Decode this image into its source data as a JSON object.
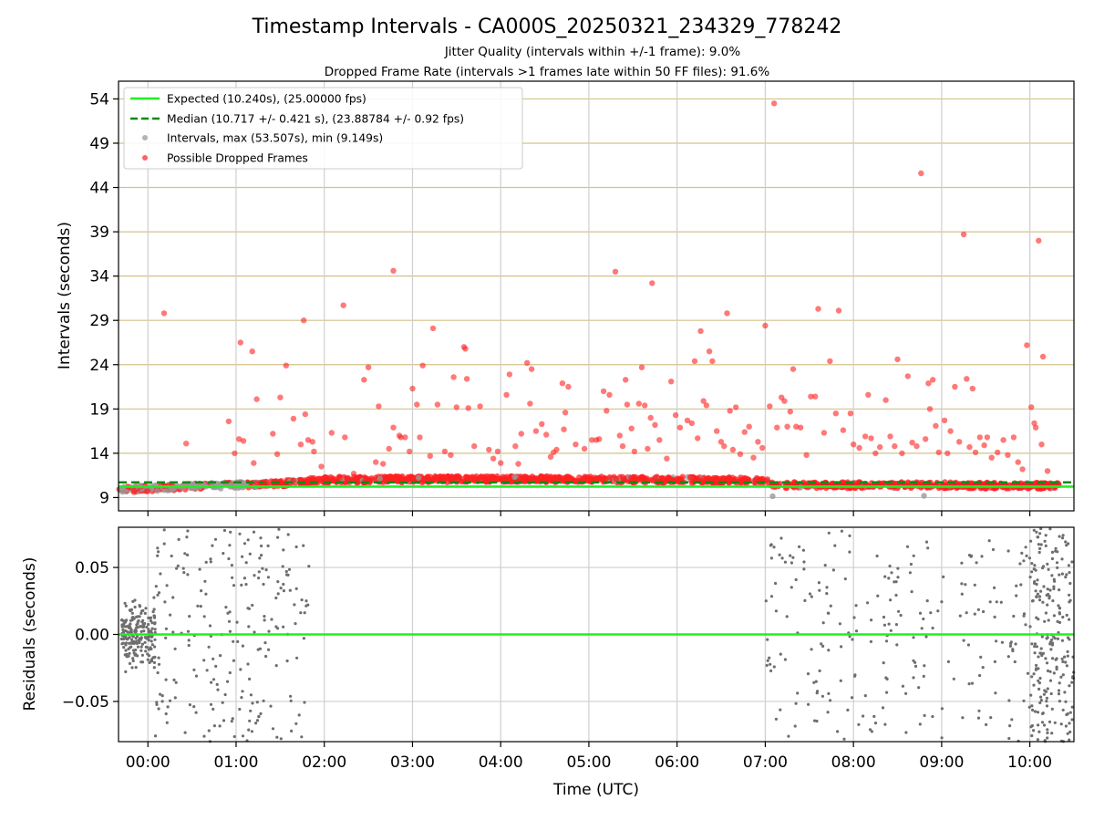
{
  "figure": {
    "title": "Timestamp Intervals - CA000S_20250321_234329_778242",
    "subtitle_1": "Jitter Quality (intervals within +/-1 frame): 9.0%",
    "subtitle_2": "Dropped Frame Rate (intervals >1 frames late within 50 FF files): 91.6%"
  },
  "colors": {
    "expected": "#22ee22",
    "median": "#118811",
    "intervals": "#9a9a9a",
    "dropped": "#ff2020",
    "residuals": "#6e6e6e",
    "hgrid_top": "#d4c28a",
    "grid": "#cfcfcf"
  },
  "chart_data": [
    {
      "type": "scatter",
      "ylabel": "Intervals (seconds)",
      "xlim": [
        "-00:20",
        "10:30"
      ],
      "ylim": [
        7.5,
        56
      ],
      "y_ticks": [
        9,
        14,
        19,
        24,
        29,
        34,
        39,
        44,
        49,
        54
      ],
      "grid": true,
      "legend_position": "top-left",
      "legend": [
        {
          "label": "Expected (10.240s), (25.00000 fps)",
          "kind": "line"
        },
        {
          "label": "Median (10.717 +/- 0.421 s), (23.88784 +/- 0.92 fps)",
          "kind": "dashed-line"
        },
        {
          "label": "Intervals, max (53.507s), min (9.149s)",
          "kind": "marker-gray"
        },
        {
          "label": "Possible Dropped Frames",
          "kind": "marker-red"
        }
      ],
      "expected_interval": 10.24,
      "median_interval": 10.717,
      "intervals_max": 53.507,
      "intervals_min": 9.149,
      "dense_band": [
        {
          "x": "-00:20",
          "y": 9.9
        },
        {
          "x": "00:10",
          "y": 10.1
        },
        {
          "x": "00:40",
          "y": 10.3
        },
        {
          "x": "01:30",
          "y": 10.6
        },
        {
          "x": "02:00",
          "y": 11.0
        },
        {
          "x": "04:00",
          "y": 11.1
        },
        {
          "x": "06:00",
          "y": 11.0
        },
        {
          "x": "07:00",
          "y": 10.9
        },
        {
          "x": "07:05",
          "y": 10.4
        },
        {
          "x": "09:00",
          "y": 10.4
        },
        {
          "x": "10:20",
          "y": 10.3
        }
      ],
      "gray_outliers": [
        {
          "x": "07:05",
          "y": 9.15
        },
        {
          "x": "08:48",
          "y": 9.2
        }
      ],
      "dropped_outliers": [
        {
          "x": "00:11",
          "y": 29.8
        },
        {
          "x": "00:26",
          "y": 15.1
        },
        {
          "x": "00:55",
          "y": 17.6
        },
        {
          "x": "00:59",
          "y": 14.0
        },
        {
          "x": "01:02",
          "y": 15.6
        },
        {
          "x": "01:03",
          "y": 26.5
        },
        {
          "x": "01:05",
          "y": 15.4
        },
        {
          "x": "01:11",
          "y": 25.5
        },
        {
          "x": "01:12",
          "y": 12.9
        },
        {
          "x": "01:14",
          "y": 20.1
        },
        {
          "x": "01:20",
          "y": 10.8
        },
        {
          "x": "01:25",
          "y": 16.2
        },
        {
          "x": "01:28",
          "y": 13.9
        },
        {
          "x": "01:30",
          "y": 20.3
        },
        {
          "x": "01:34",
          "y": 23.9
        },
        {
          "x": "01:39",
          "y": 17.9
        },
        {
          "x": "01:44",
          "y": 15.0
        },
        {
          "x": "01:46",
          "y": 29.0
        },
        {
          "x": "01:47",
          "y": 18.4
        },
        {
          "x": "01:49",
          "y": 15.5
        },
        {
          "x": "01:52",
          "y": 15.3
        },
        {
          "x": "01:53",
          "y": 14.2
        },
        {
          "x": "01:58",
          "y": 12.5
        },
        {
          "x": "02:05",
          "y": 16.3
        },
        {
          "x": "02:13",
          "y": 30.7
        },
        {
          "x": "02:14",
          "y": 15.8
        },
        {
          "x": "02:20",
          "y": 11.7
        },
        {
          "x": "02:27",
          "y": 22.3
        },
        {
          "x": "02:30",
          "y": 23.7
        },
        {
          "x": "02:35",
          "y": 13.0
        },
        {
          "x": "02:37",
          "y": 19.3
        },
        {
          "x": "02:40",
          "y": 12.8
        },
        {
          "x": "02:44",
          "y": 14.5
        },
        {
          "x": "02:47",
          "y": 34.6
        },
        {
          "x": "02:47",
          "y": 16.9
        },
        {
          "x": "02:51",
          "y": 16.0
        },
        {
          "x": "02:52",
          "y": 15.8
        },
        {
          "x": "02:55",
          "y": 15.8
        },
        {
          "x": "02:58",
          "y": 14.2
        },
        {
          "x": "03:00",
          "y": 21.3
        },
        {
          "x": "03:03",
          "y": 19.5
        },
        {
          "x": "03:05",
          "y": 15.8
        },
        {
          "x": "03:07",
          "y": 23.9
        },
        {
          "x": "03:12",
          "y": 13.7
        },
        {
          "x": "03:14",
          "y": 28.1
        },
        {
          "x": "03:17",
          "y": 19.5
        },
        {
          "x": "03:22",
          "y": 14.2
        },
        {
          "x": "03:26",
          "y": 13.8
        },
        {
          "x": "03:28",
          "y": 22.6
        },
        {
          "x": "03:30",
          "y": 19.2
        },
        {
          "x": "03:35",
          "y": 26.0
        },
        {
          "x": "03:36",
          "y": 25.8
        },
        {
          "x": "03:37",
          "y": 22.4
        },
        {
          "x": "03:38",
          "y": 19.1
        },
        {
          "x": "03:42",
          "y": 14.8
        },
        {
          "x": "03:46",
          "y": 19.3
        },
        {
          "x": "03:52",
          "y": 14.4
        },
        {
          "x": "03:55",
          "y": 13.4
        },
        {
          "x": "03:58",
          "y": 14.2
        },
        {
          "x": "04:00",
          "y": 12.9
        },
        {
          "x": "04:04",
          "y": 20.6
        },
        {
          "x": "04:06",
          "y": 22.9
        },
        {
          "x": "04:10",
          "y": 14.8
        },
        {
          "x": "04:12",
          "y": 12.8
        },
        {
          "x": "04:14",
          "y": 16.2
        },
        {
          "x": "04:18",
          "y": 24.2
        },
        {
          "x": "04:20",
          "y": 19.6
        },
        {
          "x": "04:21",
          "y": 23.5
        },
        {
          "x": "04:24",
          "y": 16.5
        },
        {
          "x": "04:28",
          "y": 17.3
        },
        {
          "x": "04:31",
          "y": 16.1
        },
        {
          "x": "04:34",
          "y": 13.6
        },
        {
          "x": "04:36",
          "y": 14.1
        },
        {
          "x": "04:38",
          "y": 14.4
        },
        {
          "x": "04:42",
          "y": 21.9
        },
        {
          "x": "04:43",
          "y": 16.7
        },
        {
          "x": "04:44",
          "y": 18.6
        },
        {
          "x": "04:46",
          "y": 21.5
        },
        {
          "x": "04:51",
          "y": 15.0
        },
        {
          "x": "04:57",
          "y": 14.5
        },
        {
          "x": "05:02",
          "y": 15.5
        },
        {
          "x": "05:05",
          "y": 15.5
        },
        {
          "x": "05:07",
          "y": 15.6
        },
        {
          "x": "05:10",
          "y": 21.0
        },
        {
          "x": "05:12",
          "y": 18.8
        },
        {
          "x": "05:14",
          "y": 20.6
        },
        {
          "x": "05:18",
          "y": 34.5
        },
        {
          "x": "05:21",
          "y": 16.0
        },
        {
          "x": "05:23",
          "y": 14.8
        },
        {
          "x": "05:25",
          "y": 22.3
        },
        {
          "x": "05:26",
          "y": 19.5
        },
        {
          "x": "05:29",
          "y": 16.8
        },
        {
          "x": "05:31",
          "y": 14.2
        },
        {
          "x": "05:34",
          "y": 19.6
        },
        {
          "x": "05:36",
          "y": 23.7
        },
        {
          "x": "05:38",
          "y": 19.4
        },
        {
          "x": "05:40",
          "y": 14.5
        },
        {
          "x": "05:42",
          "y": 18.0
        },
        {
          "x": "05:43",
          "y": 33.2
        },
        {
          "x": "05:45",
          "y": 17.2
        },
        {
          "x": "05:48",
          "y": 15.5
        },
        {
          "x": "05:53",
          "y": 13.4
        },
        {
          "x": "05:56",
          "y": 22.1
        },
        {
          "x": "05:59",
          "y": 18.3
        },
        {
          "x": "06:02",
          "y": 16.9
        },
        {
          "x": "06:07",
          "y": 17.7
        },
        {
          "x": "06:10",
          "y": 17.4
        },
        {
          "x": "06:12",
          "y": 24.4
        },
        {
          "x": "06:14",
          "y": 15.7
        },
        {
          "x": "06:16",
          "y": 27.8
        },
        {
          "x": "06:18",
          "y": 19.9
        },
        {
          "x": "06:20",
          "y": 19.4
        },
        {
          "x": "06:22",
          "y": 25.5
        },
        {
          "x": "06:24",
          "y": 24.4
        },
        {
          "x": "06:27",
          "y": 16.5
        },
        {
          "x": "06:30",
          "y": 15.3
        },
        {
          "x": "06:32",
          "y": 14.8
        },
        {
          "x": "06:34",
          "y": 29.8
        },
        {
          "x": "06:36",
          "y": 18.8
        },
        {
          "x": "06:38",
          "y": 14.4
        },
        {
          "x": "06:40",
          "y": 19.2
        },
        {
          "x": "06:43",
          "y": 13.9
        },
        {
          "x": "06:46",
          "y": 16.4
        },
        {
          "x": "06:49",
          "y": 17.0
        },
        {
          "x": "06:52",
          "y": 13.5
        },
        {
          "x": "06:55",
          "y": 15.3
        },
        {
          "x": "06:58",
          "y": 14.6
        },
        {
          "x": "07:00",
          "y": 28.4
        },
        {
          "x": "07:03",
          "y": 19.3
        },
        {
          "x": "07:06",
          "y": 53.5
        },
        {
          "x": "07:08",
          "y": 16.9
        },
        {
          "x": "07:11",
          "y": 20.3
        },
        {
          "x": "07:13",
          "y": 19.9
        },
        {
          "x": "07:15",
          "y": 17.0
        },
        {
          "x": "07:17",
          "y": 18.7
        },
        {
          "x": "07:19",
          "y": 23.5
        },
        {
          "x": "07:21",
          "y": 17.0
        },
        {
          "x": "07:24",
          "y": 16.9
        },
        {
          "x": "07:28",
          "y": 13.8
        },
        {
          "x": "07:31",
          "y": 20.4
        },
        {
          "x": "07:34",
          "y": 20.4
        },
        {
          "x": "07:36",
          "y": 30.3
        },
        {
          "x": "07:40",
          "y": 16.3
        },
        {
          "x": "07:44",
          "y": 24.4
        },
        {
          "x": "07:48",
          "y": 18.5
        },
        {
          "x": "07:50",
          "y": 30.1
        },
        {
          "x": "07:53",
          "y": 16.6
        },
        {
          "x": "07:58",
          "y": 18.5
        },
        {
          "x": "08:00",
          "y": 15.0
        },
        {
          "x": "08:04",
          "y": 14.6
        },
        {
          "x": "08:08",
          "y": 15.9
        },
        {
          "x": "08:10",
          "y": 20.6
        },
        {
          "x": "08:12",
          "y": 15.7
        },
        {
          "x": "08:15",
          "y": 14.0
        },
        {
          "x": "08:18",
          "y": 14.7
        },
        {
          "x": "08:22",
          "y": 20.0
        },
        {
          "x": "08:25",
          "y": 15.9
        },
        {
          "x": "08:28",
          "y": 14.8
        },
        {
          "x": "08:30",
          "y": 24.6
        },
        {
          "x": "08:33",
          "y": 14.0
        },
        {
          "x": "08:37",
          "y": 22.7
        },
        {
          "x": "08:40",
          "y": 15.2
        },
        {
          "x": "08:43",
          "y": 14.8
        },
        {
          "x": "08:46",
          "y": 45.6
        },
        {
          "x": "08:49",
          "y": 15.6
        },
        {
          "x": "08:51",
          "y": 21.9
        },
        {
          "x": "08:52",
          "y": 19.0
        },
        {
          "x": "08:54",
          "y": 22.3
        },
        {
          "x": "08:56",
          "y": 17.1
        },
        {
          "x": "08:58",
          "y": 14.1
        },
        {
          "x": "09:02",
          "y": 17.7
        },
        {
          "x": "09:04",
          "y": 14.0
        },
        {
          "x": "09:06",
          "y": 16.5
        },
        {
          "x": "09:09",
          "y": 21.5
        },
        {
          "x": "09:12",
          "y": 15.3
        },
        {
          "x": "09:15",
          "y": 38.7
        },
        {
          "x": "09:17",
          "y": 22.4
        },
        {
          "x": "09:19",
          "y": 14.7
        },
        {
          "x": "09:21",
          "y": 21.3
        },
        {
          "x": "09:23",
          "y": 14.1
        },
        {
          "x": "09:26",
          "y": 15.8
        },
        {
          "x": "09:29",
          "y": 14.9
        },
        {
          "x": "09:31",
          "y": 15.8
        },
        {
          "x": "09:34",
          "y": 13.5
        },
        {
          "x": "09:38",
          "y": 14.1
        },
        {
          "x": "09:42",
          "y": 15.5
        },
        {
          "x": "09:45",
          "y": 13.8
        },
        {
          "x": "09:49",
          "y": 15.8
        },
        {
          "x": "09:52",
          "y": 13.0
        },
        {
          "x": "09:55",
          "y": 12.2
        },
        {
          "x": "09:58",
          "y": 26.2
        },
        {
          "x": "10:01",
          "y": 19.2
        },
        {
          "x": "10:03",
          "y": 17.4
        },
        {
          "x": "10:04",
          "y": 16.9
        },
        {
          "x": "10:06",
          "y": 38.0
        },
        {
          "x": "10:08",
          "y": 15.0
        },
        {
          "x": "10:09",
          "y": 24.9
        },
        {
          "x": "10:12",
          "y": 12.0
        }
      ]
    },
    {
      "type": "scatter",
      "xlabel": "Time (UTC)",
      "ylabel": "Residuals (seconds)",
      "xlim": [
        "-00:20",
        "10:30"
      ],
      "ylim": [
        -0.08,
        0.08
      ],
      "x_ticks": [
        "00:00",
        "01:00",
        "02:00",
        "03:00",
        "04:00",
        "05:00",
        "06:00",
        "07:00",
        "08:00",
        "09:00",
        "10:00"
      ],
      "y_ticks": [
        "0.05",
        "0.00",
        "−0.05"
      ],
      "y_tick_values": [
        0.05,
        0.0,
        -0.05
      ],
      "grid": true,
      "zero_line": 0.0,
      "point_clusters": [
        {
          "x_start": "-00:18",
          "x_end": "00:05",
          "y_min": -0.03,
          "y_max": 0.035,
          "density": "high"
        },
        {
          "x_start": "00:05",
          "x_end": "01:50",
          "y_min": -0.08,
          "y_max": 0.08,
          "density": "medium"
        },
        {
          "x_start": "07:00",
          "x_end": "10:00",
          "y_min": -0.08,
          "y_max": 0.08,
          "density": "low"
        },
        {
          "x_start": "10:00",
          "x_end": "10:30",
          "y_min": -0.08,
          "y_max": 0.08,
          "density": "medium"
        }
      ]
    }
  ]
}
